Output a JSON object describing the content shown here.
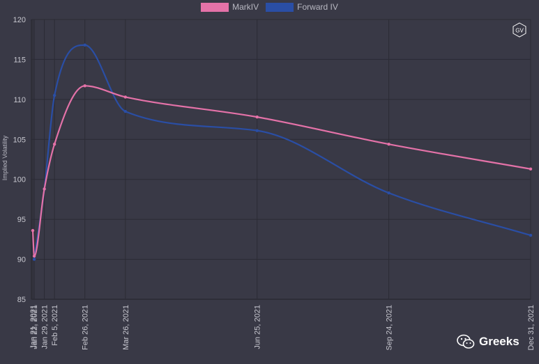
{
  "chart_data": {
    "type": "line",
    "ylabel": "Implied Volatility",
    "ylim": [
      85,
      120
    ],
    "yticks": [
      85,
      90,
      95,
      100,
      105,
      110,
      115,
      120
    ],
    "grid": true,
    "legend_position": "top-center",
    "x": [
      "Jan 21, 2021",
      "Jan 22, 2021",
      "Jan 29, 2021",
      "Feb 5, 2021",
      "Feb 26, 2021",
      "Mar 26, 2021",
      "Jun 25, 2021",
      "Sep 24, 2021",
      "Dec 31, 2021"
    ],
    "x_dates": [
      "2021-01-21",
      "2021-01-22",
      "2021-01-29",
      "2021-02-05",
      "2021-02-26",
      "2021-03-26",
      "2021-06-25",
      "2021-09-24",
      "2021-12-31"
    ],
    "series": [
      {
        "name": "MarkIV",
        "color": "#e472a8",
        "values": [
          93.6,
          90.4,
          98.8,
          104.4,
          111.7,
          110.3,
          107.8,
          104.4,
          101.3
        ]
      },
      {
        "name": "Forward IV",
        "color": "#2a4ea5",
        "values": [
          null,
          90.0,
          98.8,
          110.5,
          116.8,
          108.5,
          106.1,
          98.3,
          93.0
        ]
      }
    ]
  },
  "badge": {
    "text": "GV"
  },
  "watermark": {
    "text": "Greeks",
    "icon": "wechat-icon"
  }
}
